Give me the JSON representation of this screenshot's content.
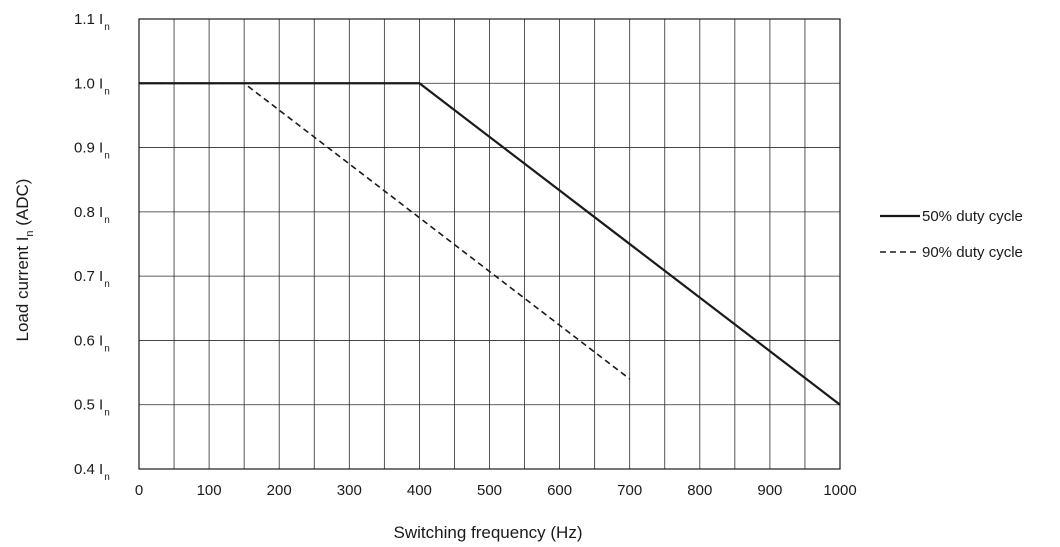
{
  "chart_data": {
    "type": "line",
    "title": "",
    "xlabel": "Switching frequency (Hz)",
    "ylabel": {
      "prefix": "Load current I",
      "subscript": "n",
      "suffix": " (ADC)"
    },
    "xlim": [
      0,
      1000
    ],
    "ylim": [
      0.4,
      1.1
    ],
    "x_ticks": [
      0,
      100,
      200,
      300,
      400,
      500,
      600,
      700,
      800,
      900,
      1000
    ],
    "x_gridlines": [
      0,
      50,
      100,
      150,
      200,
      250,
      300,
      350,
      400,
      450,
      500,
      550,
      600,
      650,
      700,
      750,
      800,
      850,
      900,
      950,
      1000
    ],
    "y_ticks": [
      {
        "value": 0.4,
        "label": "0.4 I",
        "sub": "n"
      },
      {
        "value": 0.5,
        "label": "0.5 I",
        "sub": "n"
      },
      {
        "value": 0.6,
        "label": "0.6 I",
        "sub": "n"
      },
      {
        "value": 0.7,
        "label": "0.7 I",
        "sub": "n"
      },
      {
        "value": 0.8,
        "label": "0.8 I",
        "sub": "n"
      },
      {
        "value": 0.9,
        "label": "0.9 I",
        "sub": "n"
      },
      {
        "value": 1.0,
        "label": "1.0 I",
        "sub": "n"
      },
      {
        "value": 1.1,
        "label": "1.1 I",
        "sub": "n"
      }
    ],
    "grid": true,
    "legend_position": "right",
    "series": [
      {
        "name": "50% duty cycle",
        "style": "solid",
        "color": "#1a1a1a",
        "x": [
          0,
          400,
          1000
        ],
        "y": [
          1.0,
          1.0,
          0.5
        ]
      },
      {
        "name": "90% duty cycle",
        "style": "dashed",
        "color": "#1a1a1a",
        "x": [
          0,
          150,
          700
        ],
        "y": [
          1.0,
          1.0,
          0.54
        ]
      }
    ]
  }
}
